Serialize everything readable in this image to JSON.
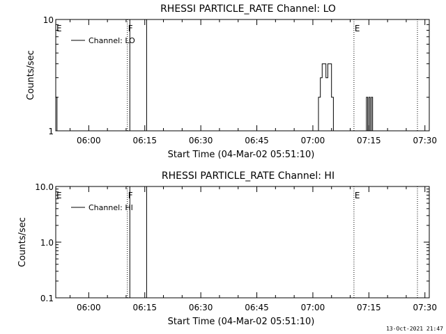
{
  "footer_timestamp": "13-Oct-2021 21:47",
  "chart_data": [
    {
      "type": "line",
      "title": "RHESSI PARTICLE_RATE Channel: LO",
      "xlabel": "Start Time (04-Mar-02 05:51:10)",
      "ylabel": "Counts/sec",
      "yscale": "log",
      "ylim": [
        1,
        10
      ],
      "ytick_values": [
        1,
        10
      ],
      "ytick_labels": [
        "1",
        "10"
      ],
      "xlim": [
        "05:51:10",
        "07:31:10"
      ],
      "xticks": [
        "06:00",
        "06:15",
        "06:30",
        "06:45",
        "07:00",
        "07:15",
        "07:30"
      ],
      "legend": {
        "position": "top-left",
        "entries": [
          "Channel: LO"
        ]
      },
      "series": [
        {
          "name": "Channel: LO",
          "x": [
            "05:51:10",
            "05:51:20",
            "05:51:30",
            "05:51:40",
            "07:01:00",
            "07:01:30",
            "07:02:00",
            "07:02:30",
            "07:03:00",
            "07:03:30",
            "07:04:00",
            "07:04:30",
            "07:05:00",
            "07:05:30",
            "07:14:00",
            "07:14:20",
            "07:14:40",
            "07:15:00",
            "07:15:20",
            "07:15:40",
            "07:16:00",
            "07:16:20"
          ],
          "values": [
            2,
            2,
            1,
            1,
            1,
            2,
            3,
            4,
            4,
            3,
            4,
            4,
            2,
            1,
            1,
            2,
            1,
            2,
            1,
            2,
            1,
            1
          ]
        }
      ],
      "flag_lines": [
        {
          "time": "06:10:20",
          "style": "dotted",
          "label": "F"
        },
        {
          "time": "06:11:00",
          "style": "solid",
          "label": ""
        },
        {
          "time": "06:15:30",
          "style": "solid",
          "label": ""
        },
        {
          "time": "07:11:00",
          "style": "dotted",
          "label": "E"
        },
        {
          "time": "07:28:00",
          "style": "dotted",
          "label": ""
        }
      ],
      "edge_flag_label": "E"
    },
    {
      "type": "line",
      "title": "RHESSI PARTICLE_RATE Channel: HI",
      "xlabel": "Start Time (04-Mar-02 05:51:10)",
      "ylabel": "Counts/sec",
      "yscale": "log",
      "ylim": [
        0.1,
        10
      ],
      "ytick_values": [
        0.1,
        1,
        10
      ],
      "ytick_labels": [
        "0.1",
        "1.0",
        "10.0"
      ],
      "xlim": [
        "05:51:10",
        "07:31:10"
      ],
      "xticks": [
        "06:00",
        "06:15",
        "06:30",
        "06:45",
        "07:00",
        "07:15",
        "07:30"
      ],
      "legend": {
        "position": "top-left",
        "entries": [
          "Channel: HI"
        ]
      },
      "series": [
        {
          "name": "Channel: HI",
          "x": [],
          "values": []
        }
      ],
      "flag_lines": [
        {
          "time": "06:10:20",
          "style": "dotted",
          "label": "F"
        },
        {
          "time": "06:11:00",
          "style": "solid",
          "label": ""
        },
        {
          "time": "06:15:30",
          "style": "solid",
          "label": ""
        },
        {
          "time": "07:11:00",
          "style": "dotted",
          "label": "E"
        },
        {
          "time": "07:28:00",
          "style": "dotted",
          "label": ""
        }
      ],
      "edge_flag_label": "E"
    }
  ]
}
